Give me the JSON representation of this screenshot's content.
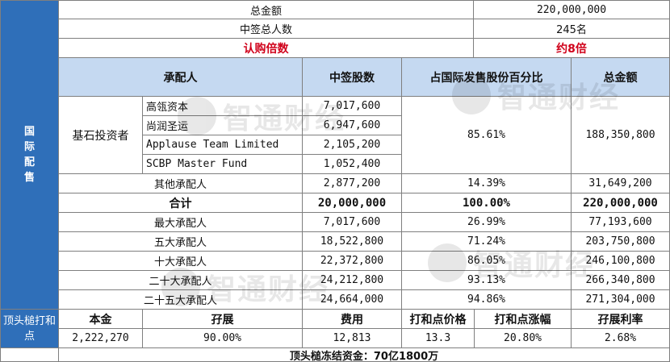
{
  "sidebar": {
    "international": "国际配售",
    "cornerstone_top": "顶头槌打和点"
  },
  "summary": {
    "total_amount_label": "总金额",
    "total_amount_value": "220,000,000",
    "winners_label": "中签总人数",
    "winners_value": "245名",
    "subscription_label": "认购倍数",
    "subscription_value": "约8倍"
  },
  "allocation": {
    "headers": [
      "承配人",
      "中签股数",
      "占国际发售股份百分比",
      "总金额"
    ],
    "cornerstone_label": "基石投资者",
    "cornerstone_investors": [
      {
        "name": "高瓴资本",
        "shares": "7,017,600"
      },
      {
        "name": "尚润圣运",
        "shares": "6,947,600"
      },
      {
        "name": "Applause Team Limited",
        "shares": "2,105,200"
      },
      {
        "name": "SCBP Master Fund",
        "shares": "1,052,400"
      }
    ],
    "cornerstone_pct": "85.61%",
    "cornerstone_amount": "188,350,800",
    "other": {
      "name": "其他承配人",
      "shares": "2,877,200",
      "pct": "14.39%",
      "amount": "31,649,200"
    },
    "total": {
      "name": "合计",
      "shares": "20,000,000",
      "pct": "100.00%",
      "amount": "220,000,000"
    },
    "ranks": [
      {
        "name": "最大承配人",
        "shares": "7,017,600",
        "pct": "26.99%",
        "amount": "77,193,600"
      },
      {
        "name": "五大承配人",
        "shares": "18,522,800",
        "pct": "71.24%",
        "amount": "203,750,800"
      },
      {
        "name": "十大承配人",
        "shares": "22,372,800",
        "pct": "86.05%",
        "amount": "246,100,800"
      },
      {
        "name": "二十大承配人",
        "shares": "24,212,800",
        "pct": "93.13%",
        "amount": "266,340,800"
      },
      {
        "name": "二十五大承配人",
        "shares": "24,664,000",
        "pct": "94.86%",
        "amount": "271,304,000"
      }
    ]
  },
  "breakeven": {
    "headers": [
      "本金",
      "孖展",
      "费用",
      "打和点价格",
      "打和点涨幅",
      "孖展利率"
    ],
    "values": [
      "2,222,270",
      "90.00%",
      "12,813",
      "13.3",
      "20.80%",
      "2.68%"
    ],
    "frozen_funds": "顶头槌冻结资金：70亿1800万"
  },
  "watermark": {
    "text": "智通财经"
  }
}
